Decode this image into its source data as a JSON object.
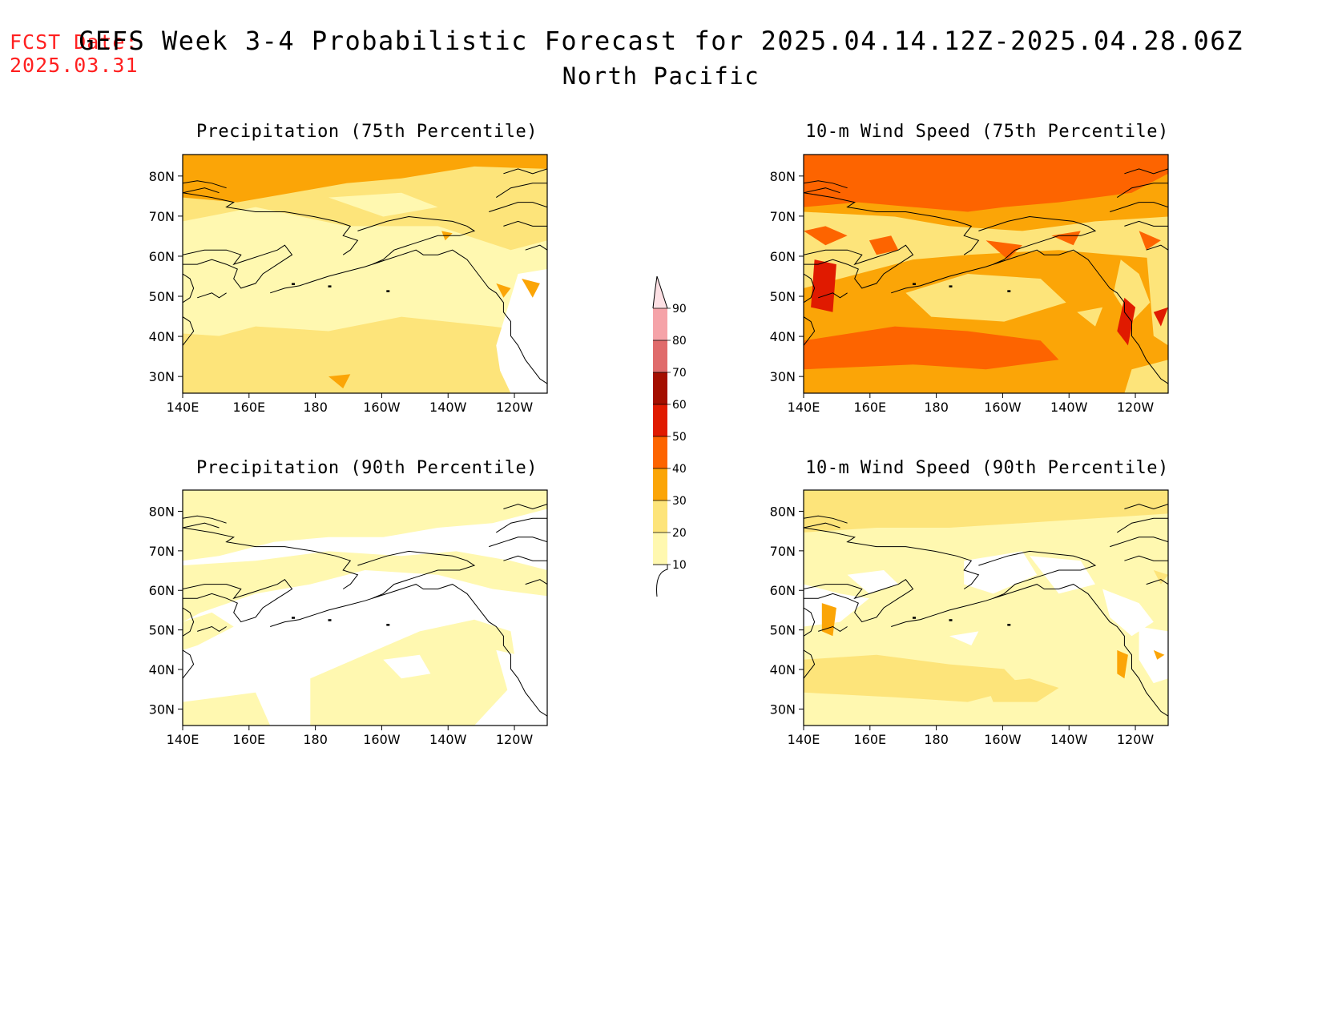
{
  "header": {
    "fcst_label": "FCST Date:",
    "fcst_date": "2025.03.31",
    "title": "GEFS Week 3-4 Probabilistic Forecast for 2025.04.14.12Z-2025.04.28.06Z",
    "subtitle": "North Pacific"
  },
  "colors": {
    "c10": "#fff8b0",
    "c20": "#fde47a",
    "c30": "#fba507",
    "c40": "#fd6400",
    "c50": "#e01a00",
    "c60": "#a40e00",
    "c70": "#e06b6b",
    "c80": "#f5a3a8",
    "c90": "#fde0e4"
  },
  "colorbar": {
    "levels": [
      "10",
      "20",
      "30",
      "40",
      "50",
      "60",
      "70",
      "80",
      "90"
    ]
  },
  "panels": [
    {
      "title": "Precipitation (75th Percentile)",
      "xlabels": [
        "140E",
        "160E",
        "180",
        "160W",
        "140W",
        "120W"
      ],
      "ylabels": [
        "80N",
        "70N",
        "60N",
        "50N",
        "40N",
        "30N"
      ]
    },
    {
      "title": "10-m Wind Speed (75th Percentile)",
      "xlabels": [
        "140E",
        "160E",
        "180",
        "160W",
        "140W",
        "120W"
      ],
      "ylabels": [
        "80N",
        "70N",
        "60N",
        "50N",
        "40N",
        "30N"
      ]
    },
    {
      "title": "Precipitation (90th Percentile)",
      "xlabels": [
        "140E",
        "160E",
        "180",
        "160W",
        "140W",
        "120W"
      ],
      "ylabels": [
        "80N",
        "70N",
        "60N",
        "50N",
        "40N",
        "30N"
      ]
    },
    {
      "title": "10-m Wind Speed (90th Percentile)",
      "xlabels": [
        "140E",
        "160E",
        "180",
        "160W",
        "140W",
        "120W"
      ],
      "ylabels": [
        "80N",
        "70N",
        "60N",
        "50N",
        "40N",
        "30N"
      ]
    }
  ]
}
